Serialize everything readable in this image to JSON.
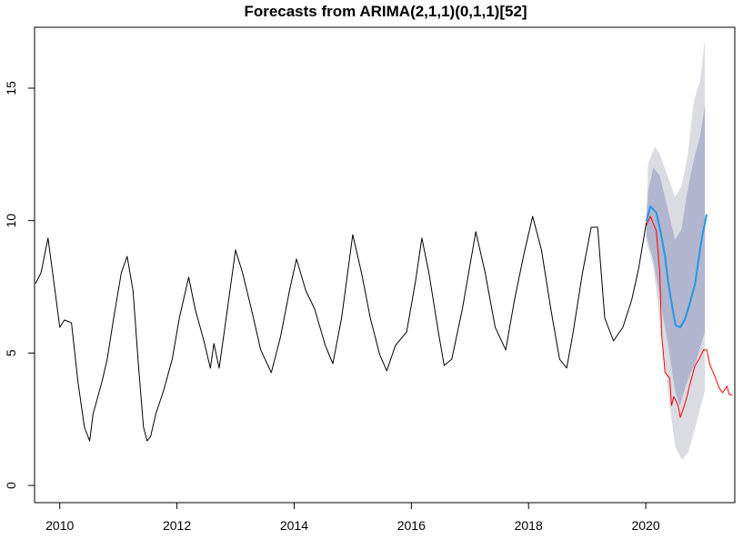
{
  "chart_data": {
    "type": "line",
    "title": "Forecasts from ARIMA(2,1,1)(0,1,1)[52]",
    "xlabel": "",
    "ylabel": "",
    "xlim": [
      2009.57,
      2021.52
    ],
    "ylim": [
      -0.65,
      17.3
    ],
    "x_ticks": [
      2010,
      2012,
      2014,
      2016,
      2018,
      2020
    ],
    "x_tick_labels": [
      "2010",
      "2012",
      "2014",
      "2016",
      "2018",
      "2020"
    ],
    "y_ticks": [
      0,
      5,
      10,
      15
    ],
    "y_tick_labels": [
      "0",
      "5",
      "10",
      "15"
    ],
    "grid": false,
    "colors": {
      "history": "#000000",
      "actual": "#ff0000",
      "forecast": "#2297e6",
      "pi80": "#b1b5ce",
      "pi95": "#dbdbe2"
    },
    "series": [
      {
        "name": "history",
        "points": [
          [
            2009.585,
            7.62
          ],
          [
            2009.68,
            8.03
          ],
          [
            2009.8,
            9.34
          ],
          [
            2009.95,
            6.83
          ],
          [
            2010.0,
            5.97
          ],
          [
            2010.08,
            6.25
          ],
          [
            2010.2,
            6.14
          ],
          [
            2010.31,
            3.91
          ],
          [
            2010.42,
            2.2
          ],
          [
            2010.51,
            1.68
          ],
          [
            2010.57,
            2.71
          ],
          [
            2010.72,
            3.91
          ],
          [
            2010.81,
            4.77
          ],
          [
            2010.92,
            6.32
          ],
          [
            2011.05,
            8.03
          ],
          [
            2011.15,
            8.65
          ],
          [
            2011.25,
            7.35
          ],
          [
            2011.34,
            4.6
          ],
          [
            2011.43,
            2.2
          ],
          [
            2011.49,
            1.68
          ],
          [
            2011.55,
            1.85
          ],
          [
            2011.64,
            2.71
          ],
          [
            2011.77,
            3.57
          ],
          [
            2011.92,
            4.77
          ],
          [
            2012.04,
            6.32
          ],
          [
            2012.2,
            7.86
          ],
          [
            2012.31,
            6.66
          ],
          [
            2012.46,
            5.46
          ],
          [
            2012.57,
            4.43
          ],
          [
            2012.63,
            5.36
          ],
          [
            2012.72,
            4.43
          ],
          [
            2012.84,
            6.32
          ],
          [
            2013.0,
            8.89
          ],
          [
            2013.12,
            8.03
          ],
          [
            2013.27,
            6.66
          ],
          [
            2013.43,
            5.12
          ],
          [
            2013.61,
            4.26
          ],
          [
            2013.77,
            5.63
          ],
          [
            2013.92,
            7.35
          ],
          [
            2014.04,
            8.55
          ],
          [
            2014.2,
            7.35
          ],
          [
            2014.35,
            6.66
          ],
          [
            2014.53,
            5.29
          ],
          [
            2014.66,
            4.6
          ],
          [
            2014.81,
            6.32
          ],
          [
            2015.0,
            9.47
          ],
          [
            2015.15,
            8.03
          ],
          [
            2015.3,
            6.32
          ],
          [
            2015.46,
            4.94
          ],
          [
            2015.58,
            4.33
          ],
          [
            2015.73,
            5.29
          ],
          [
            2015.92,
            5.8
          ],
          [
            2016.07,
            7.69
          ],
          [
            2016.18,
            9.34
          ],
          [
            2016.3,
            8.03
          ],
          [
            2016.46,
            5.8
          ],
          [
            2016.56,
            4.53
          ],
          [
            2016.69,
            4.77
          ],
          [
            2016.87,
            6.66
          ],
          [
            2017.1,
            9.58
          ],
          [
            2017.26,
            8.03
          ],
          [
            2017.43,
            5.97
          ],
          [
            2017.61,
            5.12
          ],
          [
            2017.76,
            7.0
          ],
          [
            2017.92,
            8.72
          ],
          [
            2018.07,
            10.16
          ],
          [
            2018.22,
            8.89
          ],
          [
            2018.38,
            6.66
          ],
          [
            2018.53,
            4.77
          ],
          [
            2018.65,
            4.43
          ],
          [
            2018.75,
            5.63
          ],
          [
            2018.92,
            8.03
          ],
          [
            2019.07,
            9.75
          ],
          [
            2019.18,
            9.75
          ],
          [
            2019.3,
            6.32
          ],
          [
            2019.45,
            5.46
          ],
          [
            2019.61,
            5.97
          ],
          [
            2019.76,
            7.0
          ],
          [
            2019.88,
            8.2
          ],
          [
            2020.01,
            9.92
          ]
        ]
      },
      {
        "name": "actual",
        "points": [
          [
            2020.01,
            9.82
          ],
          [
            2020.08,
            10.16
          ],
          [
            2020.18,
            9.61
          ],
          [
            2020.24,
            8.03
          ],
          [
            2020.27,
            5.73
          ],
          [
            2020.33,
            4.26
          ],
          [
            2020.41,
            4.05
          ],
          [
            2020.44,
            3.02
          ],
          [
            2020.48,
            3.36
          ],
          [
            2020.55,
            3.02
          ],
          [
            2020.59,
            2.57
          ],
          [
            2020.65,
            2.95
          ],
          [
            2020.7,
            3.33
          ],
          [
            2020.75,
            3.78
          ],
          [
            2020.84,
            4.53
          ],
          [
            2020.91,
            4.77
          ],
          [
            2020.99,
            5.12
          ],
          [
            2021.04,
            5.12
          ],
          [
            2021.1,
            4.53
          ],
          [
            2021.18,
            4.12
          ],
          [
            2021.25,
            3.7
          ],
          [
            2021.31,
            3.5
          ],
          [
            2021.39,
            3.75
          ],
          [
            2021.42,
            3.45
          ],
          [
            2021.48,
            3.4
          ]
        ]
      },
      {
        "name": "forecast",
        "points": [
          [
            2020.01,
            9.96
          ],
          [
            2020.08,
            10.54
          ],
          [
            2020.18,
            10.3
          ],
          [
            2020.25,
            9.61
          ],
          [
            2020.33,
            8.65
          ],
          [
            2020.38,
            7.72
          ],
          [
            2020.45,
            6.76
          ],
          [
            2020.51,
            6.04
          ],
          [
            2020.59,
            5.97
          ],
          [
            2020.67,
            6.28
          ],
          [
            2020.75,
            6.87
          ],
          [
            2020.84,
            7.59
          ],
          [
            2020.91,
            8.65
          ],
          [
            2020.96,
            9.37
          ],
          [
            2021.04,
            10.23
          ]
        ]
      }
    ],
    "intervals": [
      {
        "level": "95%",
        "upper": [
          [
            2020.01,
            10.0
          ],
          [
            2020.04,
            12.15
          ],
          [
            2020.16,
            12.8
          ],
          [
            2020.24,
            12.5
          ],
          [
            2020.39,
            11.57
          ],
          [
            2020.5,
            10.9
          ],
          [
            2020.61,
            11.3
          ],
          [
            2020.71,
            12.36
          ],
          [
            2020.82,
            14.5
          ],
          [
            2020.93,
            15.3
          ],
          [
            2021.01,
            16.85
          ]
        ],
        "lower": [
          [
            2020.01,
            9.2
          ],
          [
            2020.13,
            8.27
          ],
          [
            2020.24,
            6.18
          ],
          [
            2020.38,
            3.57
          ],
          [
            2020.5,
            1.48
          ],
          [
            2020.62,
            0.96
          ],
          [
            2020.73,
            1.27
          ],
          [
            2020.87,
            2.4
          ],
          [
            2021.01,
            3.57
          ]
        ]
      },
      {
        "level": "80%",
        "upper": [
          [
            2020.01,
            10.0
          ],
          [
            2020.04,
            11.1
          ],
          [
            2020.13,
            12.0
          ],
          [
            2020.24,
            11.7
          ],
          [
            2020.38,
            10.4
          ],
          [
            2020.5,
            9.27
          ],
          [
            2020.61,
            9.68
          ],
          [
            2020.71,
            11.1
          ],
          [
            2020.82,
            12.3
          ],
          [
            2020.93,
            13.2
          ],
          [
            2021.01,
            14.35
          ]
        ],
        "lower": [
          [
            2020.01,
            9.44
          ],
          [
            2020.13,
            8.5
          ],
          [
            2020.24,
            7.1
          ],
          [
            2020.38,
            5.36
          ],
          [
            2020.5,
            3.57
          ],
          [
            2020.58,
            3.0
          ],
          [
            2020.71,
            3.95
          ],
          [
            2020.87,
            4.77
          ],
          [
            2021.01,
            5.8
          ]
        ]
      }
    ]
  }
}
